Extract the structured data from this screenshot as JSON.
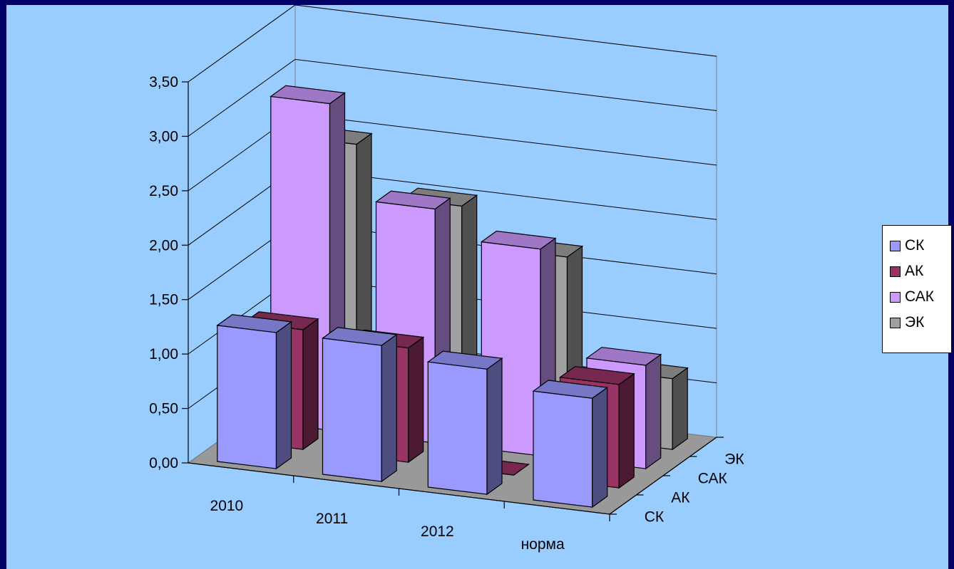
{
  "chart_data": {
    "type": "bar",
    "view": "3d-column",
    "title": "",
    "xlabel": "",
    "ylabel": "",
    "ylim": [
      0,
      3.5
    ],
    "ytick_labels": [
      "0,00",
      "0,50",
      "1,00",
      "1,50",
      "2,00",
      "2,50",
      "3,00",
      "3,50"
    ],
    "categories": [
      "2010",
      "2011",
      "2012",
      "норма"
    ],
    "series": [
      {
        "name": "СК",
        "color": "#9999ff",
        "values": [
          1.25,
          1.25,
          1.15,
          1.0
        ]
      },
      {
        "name": "АК",
        "color": "#993366",
        "values": [
          1.1,
          1.05,
          0.0,
          0.95
        ]
      },
      {
        "name": "САК",
        "color": "#cc99ff",
        "values": [
          3.0,
          2.15,
          1.9,
          0.95
        ]
      },
      {
        "name": "ЭК",
        "color": "#a0a0a0",
        "values": [
          2.45,
          2.0,
          1.65,
          0.65
        ]
      }
    ],
    "depth_labels": [
      "СК",
      "АК",
      "САК",
      "ЭК"
    ],
    "grid": true,
    "floor_color": "#999999",
    "legend": "right"
  }
}
